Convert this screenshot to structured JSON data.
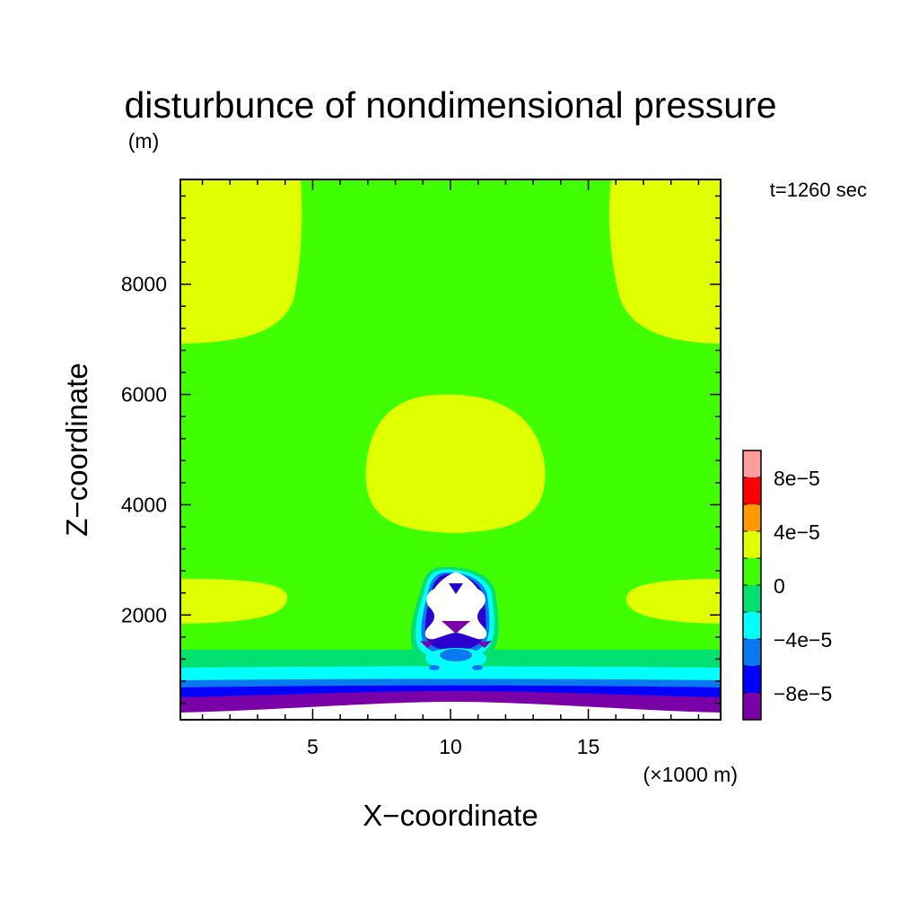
{
  "chart_data": {
    "type": "heatmap",
    "title": "disturbunce of nondimensional pressure",
    "units": "(m)",
    "time_label": "t=1260 sec",
    "xlabel": "X−coordinate",
    "ylabel": "Z−coordinate",
    "x_unit_note": "(×1000 m)",
    "xlim": [
      0.2,
      19.8
    ],
    "ylim": [
      100,
      9900
    ],
    "x_ticks": [
      5,
      10,
      15
    ],
    "x_tick_labels": [
      "5",
      "10",
      "15"
    ],
    "y_ticks": [
      2000,
      4000,
      6000,
      8000
    ],
    "y_tick_labels": [
      "2000",
      "4000",
      "6000",
      "8000"
    ],
    "background_level": "0 to 2e-5",
    "colorbar": {
      "levels": [
        {
          "range": [
            -0.0001,
            -8e-05
          ],
          "color": "#7a00a8"
        },
        {
          "range": [
            -8e-05,
            -6e-05
          ],
          "color": "#0000ff"
        },
        {
          "range": [
            -6e-05,
            -4e-05
          ],
          "color": "#0a78f0"
        },
        {
          "range": [
            -4e-05,
            -2e-05
          ],
          "color": "#00ffff"
        },
        {
          "range": [
            -2e-05,
            0
          ],
          "color": "#00e070"
        },
        {
          "range": [
            0,
            2e-05
          ],
          "color": "#40ff00"
        },
        {
          "range": [
            2e-05,
            4e-05
          ],
          "color": "#e0ff00"
        },
        {
          "range": [
            4e-05,
            6e-05
          ],
          "color": "#ff9900"
        },
        {
          "range": [
            6e-05,
            8e-05
          ],
          "color": "#ff0000"
        },
        {
          "range": [
            8e-05,
            0.0001
          ],
          "color": "#ff9c9c"
        }
      ],
      "tick_labels": [
        "8e−5",
        "4e−5",
        "0",
        "−4e−5",
        "−8e−5"
      ],
      "tick_values": [
        8e-05,
        4e-05,
        0,
        -4e-05,
        -8e-05
      ]
    }
  }
}
